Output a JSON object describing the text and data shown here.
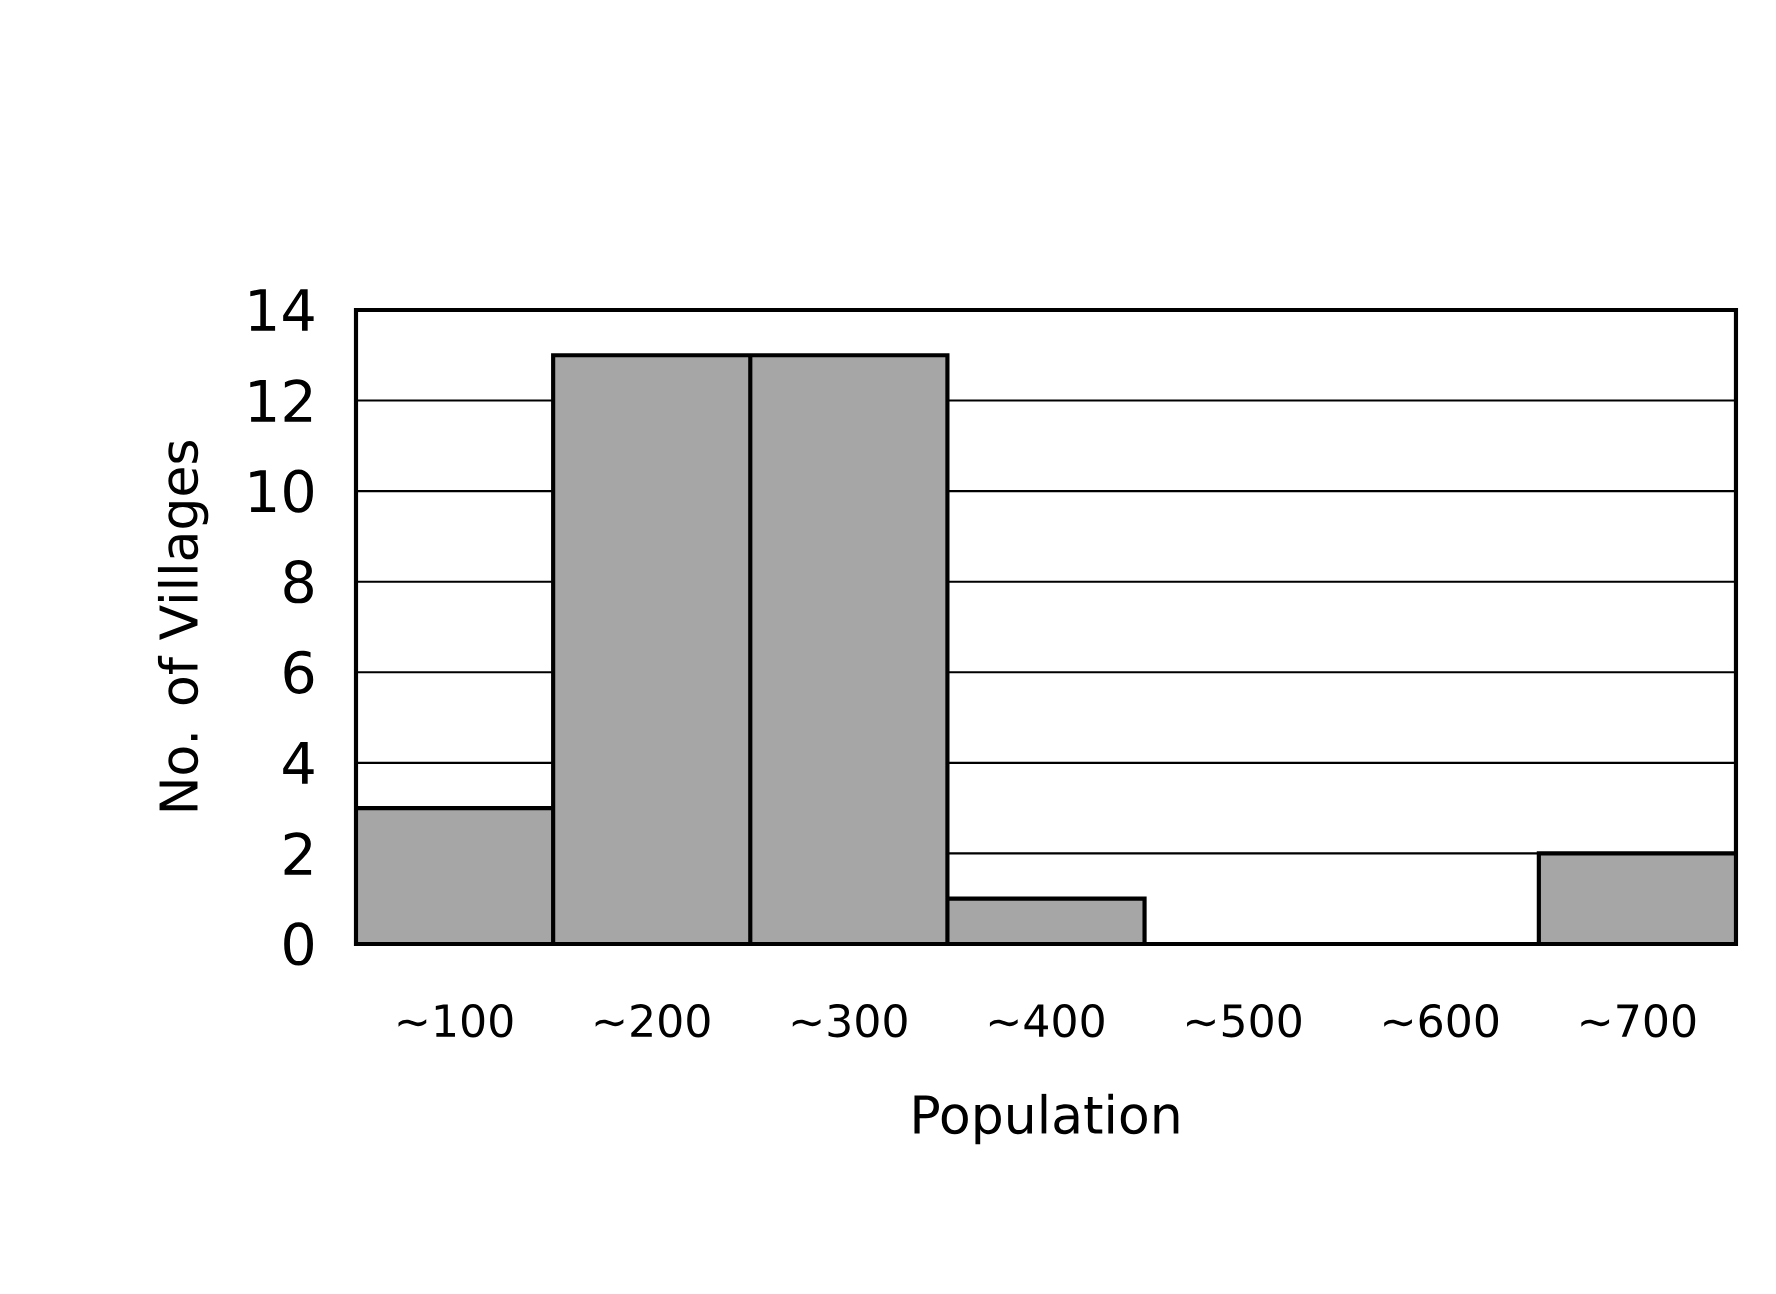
{
  "chart_data": {
    "type": "bar",
    "xlabel": "Population",
    "ylabel": "No. of Villages",
    "categories": [
      "∼100",
      "∼200",
      "∼300",
      "∼400",
      "∼500",
      "∼600",
      "∼700"
    ],
    "values": [
      3,
      13,
      13,
      1,
      0,
      0,
      2
    ],
    "color": "#a6a6a6",
    "ylim": [
      0,
      14
    ],
    "yticks": [
      0,
      2,
      4,
      6,
      8,
      10,
      12,
      14
    ],
    "grid": "y"
  }
}
